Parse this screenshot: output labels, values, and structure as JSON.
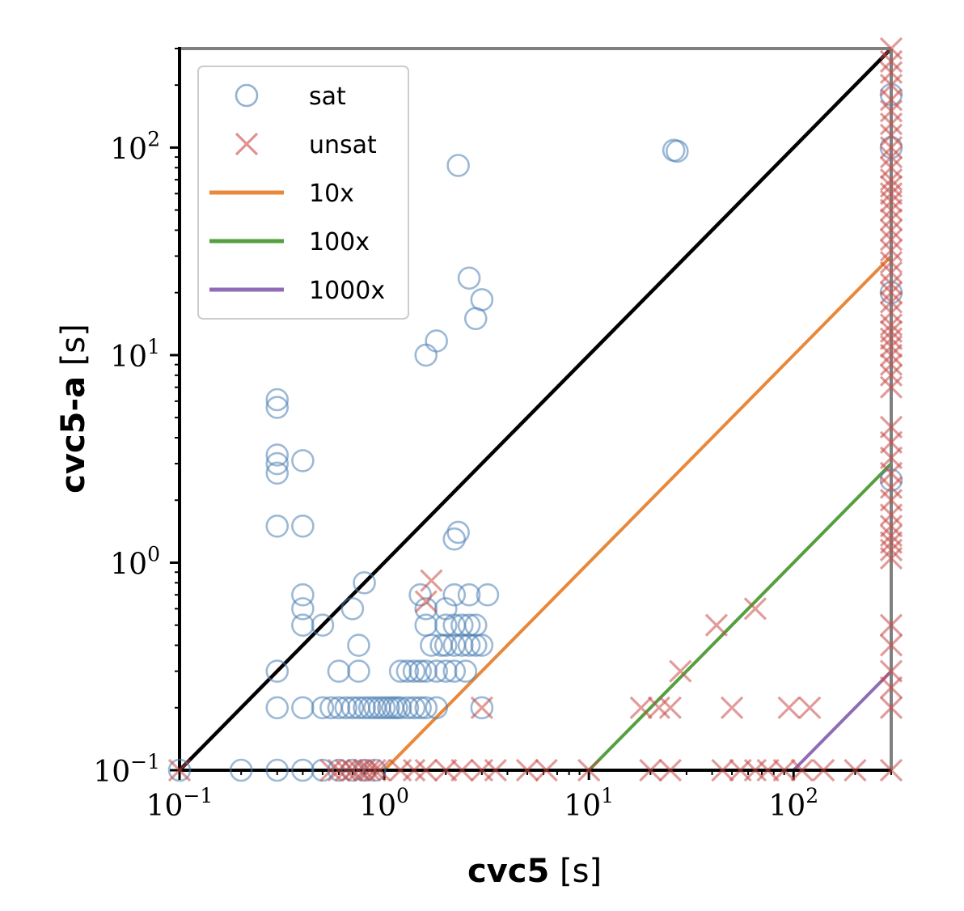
{
  "chart_data": {
    "type": "scatter",
    "xscale": "log",
    "yscale": "log",
    "xlim": [
      0.1,
      300
    ],
    "ylim": [
      0.1,
      300
    ],
    "grid": false,
    "legend_placement": "top-left",
    "title": "",
    "xlabel": {
      "main": "cvc5",
      "unit": " [s]"
    },
    "ylabel": {
      "main": "cvc5-a",
      "unit": " [s]"
    },
    "x_ticks": [
      {
        "value": 0.1,
        "base": "10",
        "exp": "−1"
      },
      {
        "value": 1,
        "base": "10",
        "exp": "0"
      },
      {
        "value": 10,
        "base": "10",
        "exp": "1"
      },
      {
        "value": 100,
        "base": "10",
        "exp": "2"
      }
    ],
    "y_ticks": [
      {
        "value": 0.1,
        "base": "10",
        "exp": "−1"
      },
      {
        "value": 1,
        "base": "10",
        "exp": "0"
      },
      {
        "value": 10,
        "base": "10",
        "exp": "1"
      },
      {
        "value": 100,
        "base": "10",
        "exp": "2"
      }
    ],
    "colors": {
      "sat": "#4a7fb5",
      "unsat": "#c84a47",
      "diagonal": "#000000",
      "border_timeout": "#808080",
      "10x": "#e8883a",
      "100x": "#559f3f",
      "1000x": "#8f6bb8"
    },
    "legend": [
      {
        "label": "sat",
        "kind": "circle",
        "color": "#4a7fb5"
      },
      {
        "label": "unsat",
        "kind": "cross",
        "color": "#c84a47"
      },
      {
        "label": "10x",
        "kind": "line",
        "color": "#e8883a"
      },
      {
        "label": "100x",
        "kind": "line",
        "color": "#559f3f"
      },
      {
        "label": "1000x",
        "kind": "line",
        "color": "#8f6bb8"
      }
    ],
    "reference_lines": [
      {
        "name": "1x",
        "factor": 1,
        "color": "#000000"
      },
      {
        "name": "10x",
        "factor": 10,
        "color": "#e8883a"
      },
      {
        "name": "100x",
        "factor": 100,
        "color": "#559f3f"
      },
      {
        "name": "1000x",
        "factor": 1000,
        "color": "#8f6bb8"
      }
    ],
    "series": [
      {
        "name": "sat",
        "marker": "circle",
        "color": "#4a7fb5",
        "points": [
          [
            0.1,
            0.1
          ],
          [
            0.2,
            0.1
          ],
          [
            0.3,
            0.1
          ],
          [
            0.4,
            0.1
          ],
          [
            0.5,
            0.1
          ],
          [
            0.6,
            0.1
          ],
          [
            0.7,
            0.1
          ],
          [
            0.8,
            0.1
          ],
          [
            0.9,
            0.1
          ],
          [
            0.3,
            0.2
          ],
          [
            0.4,
            0.2
          ],
          [
            0.5,
            0.2
          ],
          [
            0.55,
            0.2
          ],
          [
            0.6,
            0.2
          ],
          [
            0.65,
            0.2
          ],
          [
            0.7,
            0.2
          ],
          [
            0.75,
            0.2
          ],
          [
            0.8,
            0.2
          ],
          [
            0.85,
            0.2
          ],
          [
            0.9,
            0.2
          ],
          [
            0.95,
            0.2
          ],
          [
            1.0,
            0.2
          ],
          [
            1.05,
            0.2
          ],
          [
            1.1,
            0.2
          ],
          [
            1.15,
            0.2
          ],
          [
            1.2,
            0.2
          ],
          [
            1.3,
            0.2
          ],
          [
            1.4,
            0.2
          ],
          [
            1.5,
            0.2
          ],
          [
            1.6,
            0.2
          ],
          [
            1.8,
            0.2
          ],
          [
            3.0,
            0.2
          ],
          [
            0.3,
            0.3
          ],
          [
            0.6,
            0.3
          ],
          [
            0.75,
            0.3
          ],
          [
            1.2,
            0.3
          ],
          [
            1.3,
            0.3
          ],
          [
            1.4,
            0.3
          ],
          [
            1.5,
            0.3
          ],
          [
            1.6,
            0.3
          ],
          [
            1.8,
            0.3
          ],
          [
            2.0,
            0.3
          ],
          [
            2.2,
            0.3
          ],
          [
            2.5,
            0.3
          ],
          [
            0.75,
            0.4
          ],
          [
            1.7,
            0.4
          ],
          [
            1.9,
            0.4
          ],
          [
            2.0,
            0.4
          ],
          [
            2.2,
            0.4
          ],
          [
            2.4,
            0.4
          ],
          [
            2.6,
            0.4
          ],
          [
            2.8,
            0.4
          ],
          [
            3.0,
            0.4
          ],
          [
            0.4,
            0.5
          ],
          [
            0.5,
            0.5
          ],
          [
            1.6,
            0.5
          ],
          [
            2.0,
            0.5
          ],
          [
            2.2,
            0.5
          ],
          [
            2.4,
            0.5
          ],
          [
            2.6,
            0.5
          ],
          [
            2.8,
            0.5
          ],
          [
            0.4,
            0.6
          ],
          [
            0.7,
            0.6
          ],
          [
            1.6,
            0.6
          ],
          [
            2.0,
            0.6
          ],
          [
            0.4,
            0.7
          ],
          [
            1.5,
            0.7
          ],
          [
            2.2,
            0.7
          ],
          [
            2.6,
            0.7
          ],
          [
            3.2,
            0.7
          ],
          [
            0.8,
            0.8
          ],
          [
            2.2,
            1.3
          ],
          [
            2.3,
            1.4
          ],
          [
            0.3,
            1.5
          ],
          [
            0.4,
            1.5
          ],
          [
            0.3,
            2.7
          ],
          [
            0.3,
            3.0
          ],
          [
            0.3,
            3.3
          ],
          [
            0.4,
            3.1
          ],
          [
            0.3,
            5.6
          ],
          [
            0.3,
            6.1
          ],
          [
            1.6,
            10
          ],
          [
            1.8,
            11.7
          ],
          [
            2.8,
            15
          ],
          [
            3.0,
            18.5
          ],
          [
            2.6,
            23.5
          ],
          [
            2.3,
            82
          ],
          [
            26,
            97
          ],
          [
            27,
            96
          ],
          [
            300,
            2.5
          ],
          [
            300,
            20
          ],
          [
            300,
            100
          ],
          [
            300,
            180
          ]
        ]
      },
      {
        "name": "unsat",
        "marker": "cross",
        "color": "#c84a47",
        "points": [
          [
            0.1,
            0.1
          ],
          [
            0.55,
            0.1
          ],
          [
            0.6,
            0.1
          ],
          [
            0.65,
            0.1
          ],
          [
            0.7,
            0.1
          ],
          [
            0.75,
            0.1
          ],
          [
            0.8,
            0.1
          ],
          [
            0.85,
            0.1
          ],
          [
            0.9,
            0.1
          ],
          [
            0.95,
            0.1
          ],
          [
            1.2,
            0.1
          ],
          [
            1.4,
            0.1
          ],
          [
            1.6,
            0.1
          ],
          [
            2.0,
            0.1
          ],
          [
            2.4,
            0.1
          ],
          [
            3.0,
            0.1
          ],
          [
            3.5,
            0.1
          ],
          [
            5.0,
            0.1
          ],
          [
            6.2,
            0.1
          ],
          [
            10,
            0.1
          ],
          [
            20,
            0.1
          ],
          [
            25,
            0.1
          ],
          [
            45,
            0.1
          ],
          [
            55,
            0.1
          ],
          [
            65,
            0.1
          ],
          [
            75,
            0.1
          ],
          [
            90,
            0.1
          ],
          [
            110,
            0.1
          ],
          [
            140,
            0.1
          ],
          [
            200,
            0.1
          ],
          [
            3.0,
            0.2
          ],
          [
            18,
            0.2
          ],
          [
            22,
            0.2
          ],
          [
            25,
            0.2
          ],
          [
            50,
            0.2
          ],
          [
            95,
            0.2
          ],
          [
            120,
            0.2
          ],
          [
            28,
            0.3
          ],
          [
            42,
            0.5
          ],
          [
            65,
            0.6
          ],
          [
            1.6,
            0.65
          ],
          [
            1.7,
            0.82
          ],
          [
            300,
            0.1
          ],
          [
            300,
            0.2
          ],
          [
            300,
            0.25
          ],
          [
            300,
            0.3
          ],
          [
            300,
            0.4
          ],
          [
            300,
            0.5
          ],
          [
            300,
            1.05
          ],
          [
            300,
            1.15
          ],
          [
            300,
            1.25
          ],
          [
            300,
            1.35
          ],
          [
            300,
            1.5
          ],
          [
            300,
            1.7
          ],
          [
            300,
            2.0
          ],
          [
            300,
            2.3
          ],
          [
            300,
            2.7
          ],
          [
            300,
            3.2
          ],
          [
            300,
            3.8
          ],
          [
            300,
            4.5
          ],
          [
            300,
            7
          ],
          [
            300,
            8
          ],
          [
            300,
            9
          ],
          [
            300,
            10
          ],
          [
            300,
            11
          ],
          [
            300,
            12
          ],
          [
            300,
            13
          ],
          [
            300,
            14
          ],
          [
            300,
            16
          ],
          [
            300,
            18
          ],
          [
            300,
            20
          ],
          [
            300,
            22
          ],
          [
            300,
            25
          ],
          [
            300,
            28
          ],
          [
            300,
            32
          ],
          [
            300,
            36
          ],
          [
            300,
            40
          ],
          [
            300,
            45
          ],
          [
            300,
            50
          ],
          [
            300,
            55
          ],
          [
            300,
            60
          ],
          [
            300,
            65
          ],
          [
            300,
            70
          ],
          [
            300,
            80
          ],
          [
            300,
            90
          ],
          [
            300,
            100
          ],
          [
            300,
            115
          ],
          [
            300,
            130
          ],
          [
            300,
            150
          ],
          [
            300,
            170
          ],
          [
            300,
            200
          ],
          [
            300,
            230
          ],
          [
            300,
            260
          ],
          [
            300,
            300
          ]
        ]
      }
    ]
  }
}
